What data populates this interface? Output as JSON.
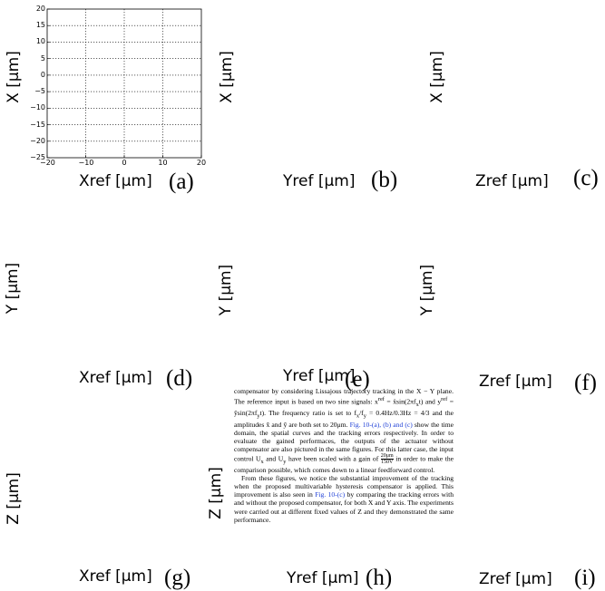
{
  "chart_data": {
    "type": "line",
    "title": "",
    "xlabel": "Xref [μm]",
    "ylabel": "X [μm]",
    "xlim": [
      -20,
      20
    ],
    "ylim": [
      -25,
      20
    ],
    "x_ticks": [
      "−20",
      "−10",
      "0",
      "10",
      "20"
    ],
    "y_ticks": [
      "20",
      "15",
      "10",
      "5",
      "0",
      "−5",
      "−10",
      "−15",
      "−20",
      "−25"
    ],
    "grid": true,
    "series": []
  },
  "panels": {
    "a": {
      "ylabel": "X [μm]",
      "xlabel": "Xref [μm]",
      "tag": "(a)"
    },
    "b": {
      "ylabel": "X [μm]",
      "xlabel": "Yref [μm]",
      "tag": "(b)"
    },
    "c": {
      "ylabel": "X [μm]",
      "xlabel": "Zref [μm]",
      "tag": "(c)"
    },
    "d": {
      "ylabel": "Y [μm]",
      "xlabel": "Xref [μm]",
      "tag": "(d)"
    },
    "e": {
      "ylabel": "Y [μm]",
      "xlabel": "Yref [μm]",
      "tag": "(e)"
    },
    "f": {
      "ylabel": "Y [μm]",
      "xlabel": "Zref [μm]",
      "tag": "(f)"
    },
    "g": {
      "ylabel": "Z [μm]",
      "xlabel": "Xref [μm]",
      "tag": "(g)"
    },
    "h": {
      "ylabel": "Z [μm]",
      "xlabel": "Yref [μm]",
      "tag": "(h)"
    },
    "i": {
      "xlabel": "Zref [μm]",
      "tag": "(i)"
    }
  },
  "overlay_text": {
    "p1_a": "compensator by considering Lissajous trajectory tracking in the X − Y plane. The reference input is based on two sine signals: x",
    "p1_sup1": "ref",
    "p1_b": " = x̂sin(2πf",
    "p1_sub1": "x",
    "p1_c": "t) and y",
    "p1_sup2": "ref",
    "p1_d": " = ŷsin(2πf",
    "p1_sub2": "y",
    "p1_e": "t). The frequency ratio is set to f",
    "p1_f": "/f",
    "p1_g": " = 0.4Hz/0.3Hz = 4/3 and the amplitudes x̂ and ŷ are both set to 20μm. ",
    "p1_link": "Fig. 10-(a), (b) and (c)",
    "p1_h": " show the time domain, the spatial curves and the tracking errors respectively. In order to evaluate the gained performaces, the outputs of the actuator without compensator are also pictured in the same figures. For this latter case, the input control U",
    "p1_i": " and U",
    "p1_j": " have been scaled with a gain of ",
    "p1_frac_num": "20μm",
    "p1_frac_den": "150V",
    "p1_k": " in order to make the comparison possible, which comes down to a linear feedforward control.",
    "p2_a": "From these figures, we notice the substantial improvement of the tracking when the proposed multivariable hysteresis compensator is applied. This improvement is also seen in ",
    "p2_link": "Fig. 10-(c)",
    "p2_b": " by comparing the tracking errors with and without the proposed compensator, for both X and Y axis. The experiments were carried out at different fixed values of Z and they demonstrated the same performance."
  }
}
